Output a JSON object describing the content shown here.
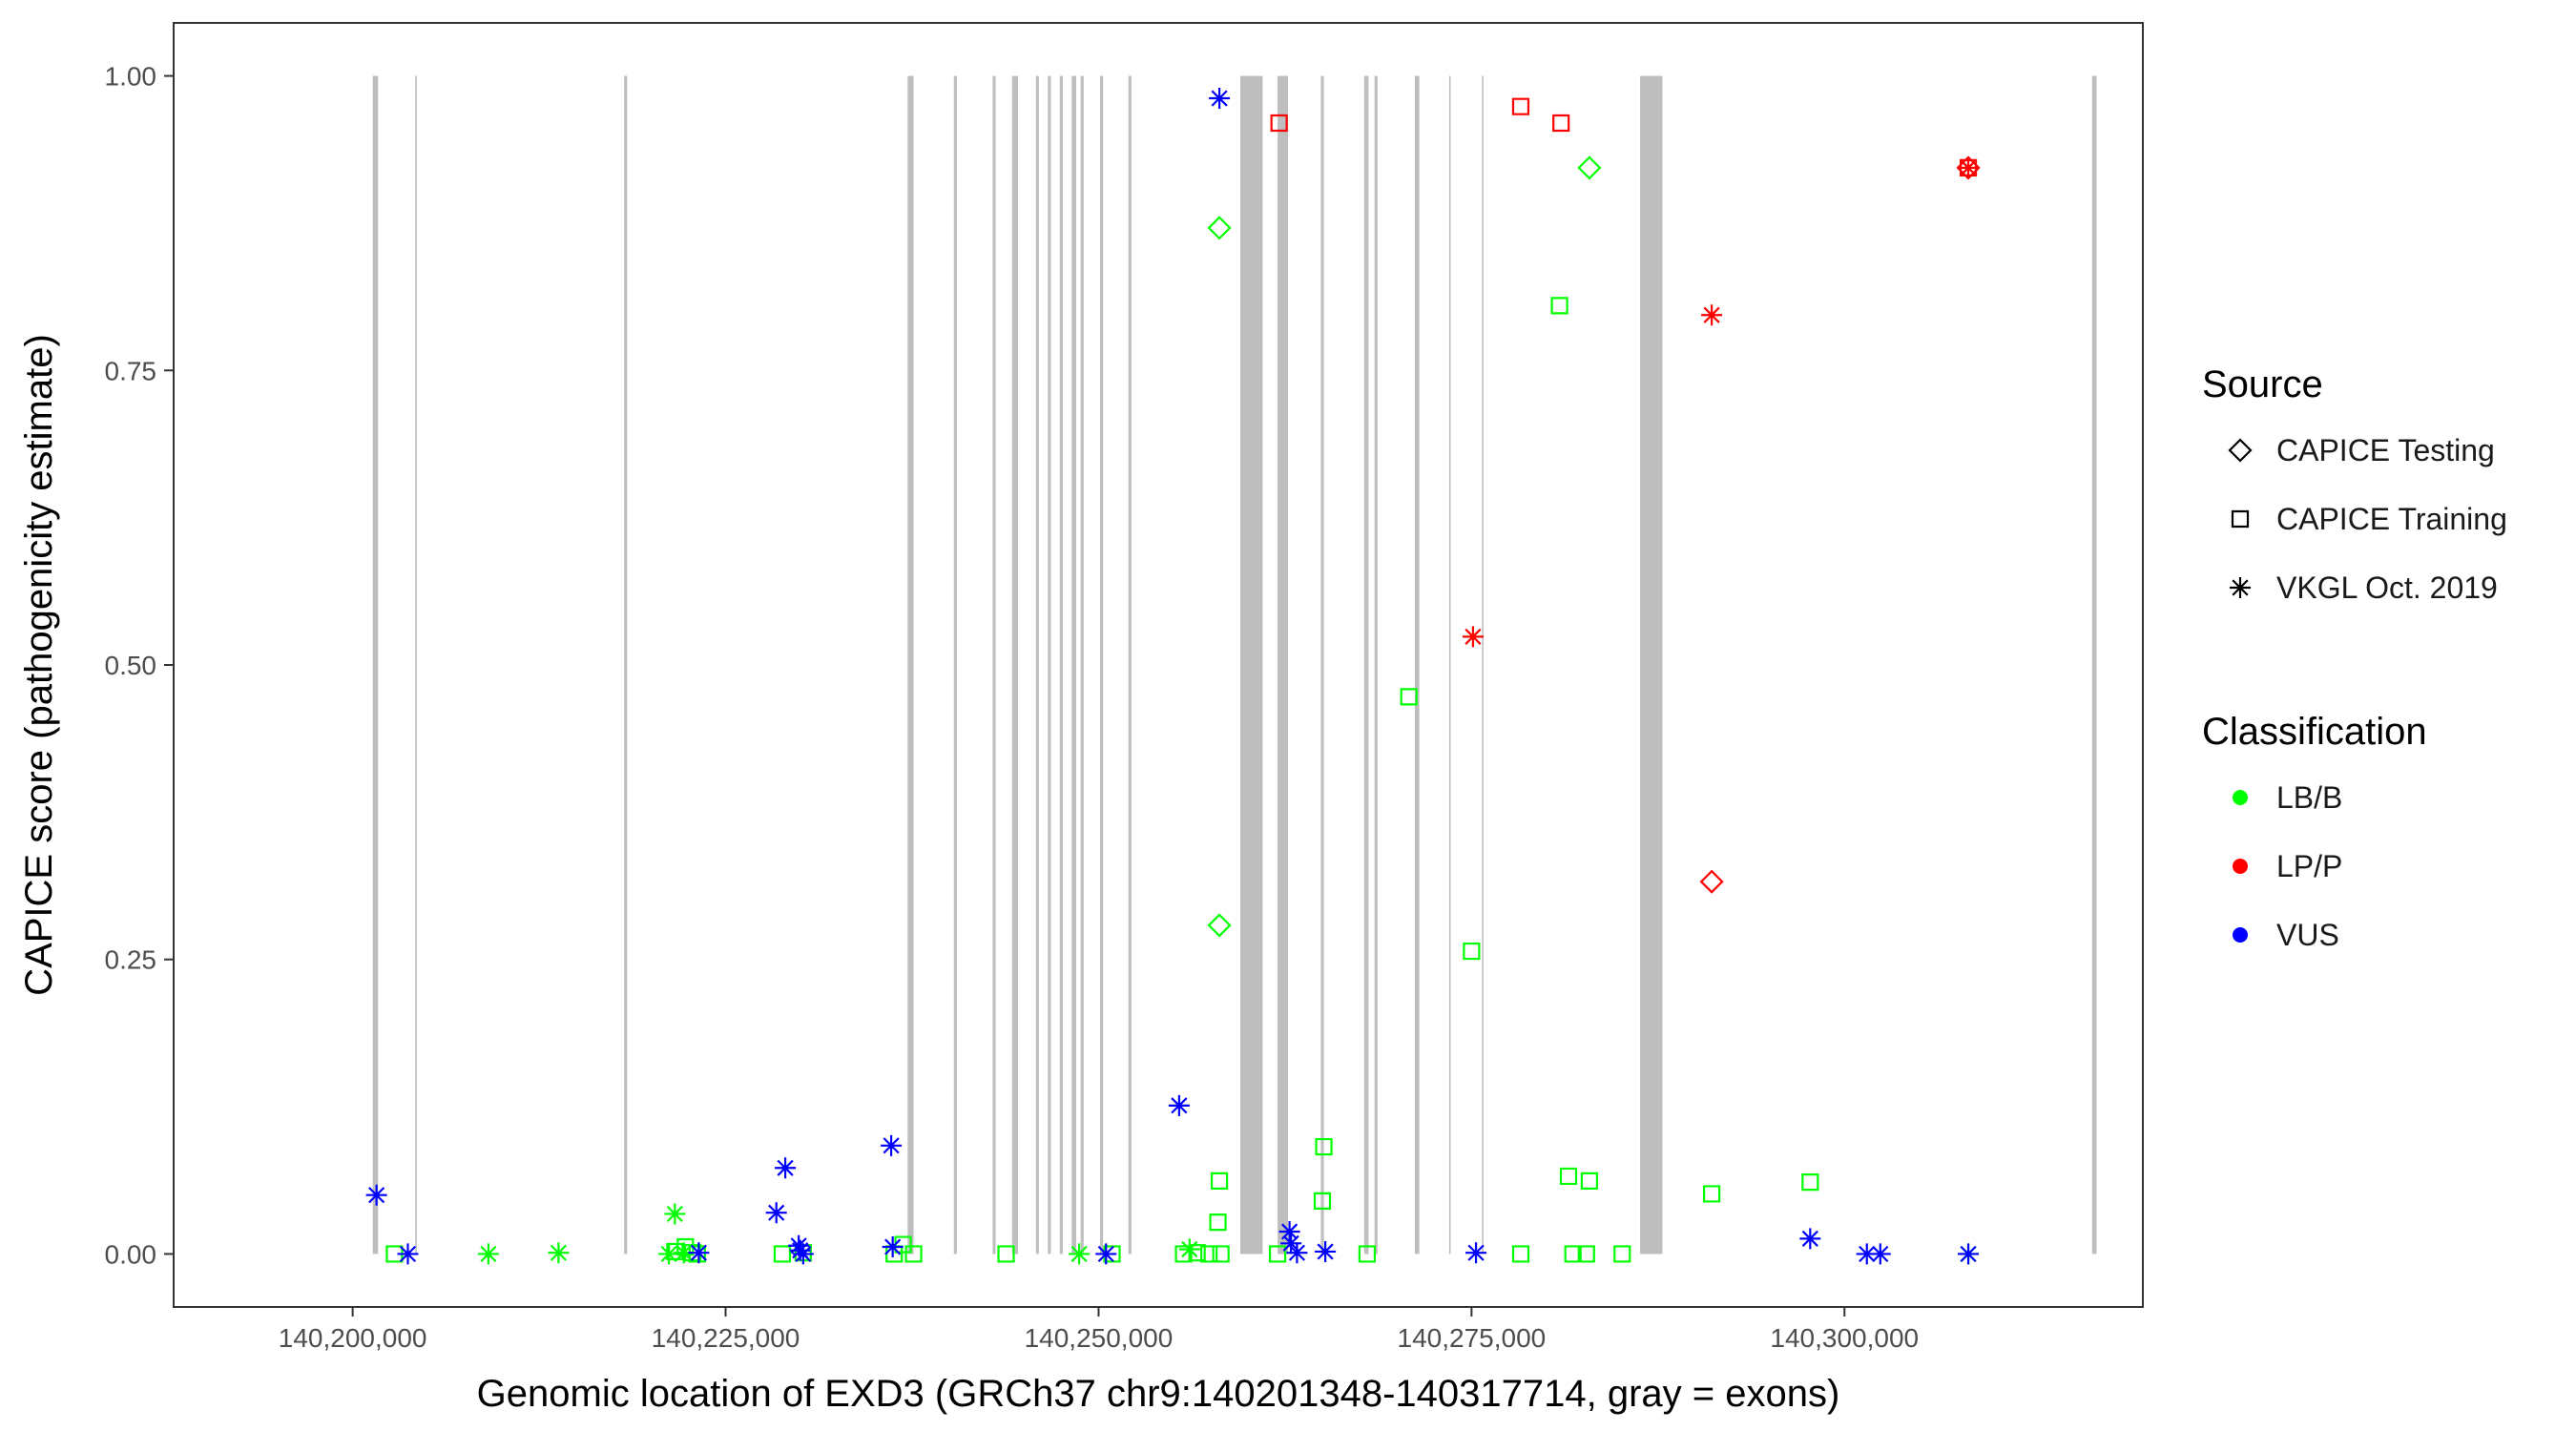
{
  "chart_data": {
    "type": "scatter",
    "xlabel": "Genomic location of EXD3 (GRCh37 chr9:140201348-140317714, gray = exons)",
    "ylabel": "CAPICE score (pathogenicity estimate)",
    "xlim": [
      140188000,
      140320000
    ],
    "ylim": [
      -0.045,
      1.045
    ],
    "x_ticks": [
      140200000,
      140225000,
      140250000,
      140275000,
      140300000
    ],
    "x_tick_labels": [
      "140,200,000",
      "140,225,000",
      "140,250,000",
      "140,275,000",
      "140,300,000"
    ],
    "y_ticks": [
      0,
      0.25,
      0.5,
      0.75,
      1
    ],
    "y_tick_labels": [
      "0.00",
      "0.25",
      "0.50",
      "0.75",
      "1.00"
    ],
    "grid": false,
    "legend_position": "right",
    "exon_color": "#bebebe",
    "exons": [
      [
        140201348,
        140201700
      ],
      [
        140204200,
        140204300
      ],
      [
        140218200,
        140218400
      ],
      [
        140237200,
        140237600
      ],
      [
        140240300,
        140240500
      ],
      [
        140242900,
        140243100
      ],
      [
        140244200,
        140244600
      ],
      [
        140245800,
        140246000
      ],
      [
        140246600,
        140246800
      ],
      [
        140247400,
        140247600
      ],
      [
        140248200,
        140248500
      ],
      [
        140248800,
        140249000
      ],
      [
        140250100,
        140250300
      ],
      [
        140252000,
        140252200
      ],
      [
        140259500,
        140261000
      ],
      [
        140262000,
        140262700
      ],
      [
        140264900,
        140265100
      ],
      [
        140267800,
        140268100
      ],
      [
        140268500,
        140268700
      ],
      [
        140271200,
        140271500
      ],
      [
        140273500,
        140273600
      ],
      [
        140275700,
        140275800
      ],
      [
        140286300,
        140287800
      ],
      [
        140316600,
        140316900
      ]
    ],
    "legend_source": {
      "title": "Source",
      "items": [
        {
          "label": "CAPICE Testing",
          "shape": "diamond"
        },
        {
          "label": "CAPICE Training",
          "shape": "square"
        },
        {
          "label": "VKGL Oct. 2019",
          "shape": "star"
        }
      ]
    },
    "legend_classification": {
      "title": "Classification",
      "items": [
        {
          "label": "LB/B",
          "color": "#00ff00"
        },
        {
          "label": "LP/P",
          "color": "#ff0000"
        },
        {
          "label": "VUS",
          "color": "#0000ff"
        }
      ]
    },
    "series": [
      {
        "source": "CAPICE Testing",
        "classification": "LB/B",
        "shape": "diamond",
        "color": "#00ff00",
        "x": [
          140258100,
          140258100,
          140282900
        ],
        "y": [
          0.871,
          0.279,
          0.922
        ]
      },
      {
        "source": "CAPICE Testing",
        "classification": "LP/P",
        "shape": "diamond",
        "color": "#ff0000",
        "x": [
          140291100,
          140308300
        ],
        "y": [
          0.316,
          0.922
        ]
      },
      {
        "source": "CAPICE Training",
        "classification": "LB/B",
        "shape": "square",
        "color": "#00ff00",
        "x": [
          140202800,
          140221600,
          140222300,
          140222800,
          140223100,
          140228800,
          140230200,
          140236300,
          140236900,
          140237600,
          140243800,
          140250900,
          140255700,
          140256600,
          140257400,
          140258000,
          140258100,
          140258200,
          140262000,
          140265000,
          140265100,
          140268000,
          140270800,
          140275000,
          140278300,
          140280900,
          140281500,
          140281800,
          140282700,
          140282900,
          140285100,
          140291100,
          140297700
        ],
        "y": [
          0,
          0.002,
          0.006,
          0.001,
          0,
          0,
          0.001,
          0,
          0.008,
          0,
          0,
          0,
          0,
          0.001,
          0,
          0.027,
          0.062,
          0,
          0,
          0.045,
          0.091,
          0,
          0.473,
          0.257,
          0,
          0.805,
          0.066,
          0,
          0,
          0.062,
          0,
          0.051,
          0.061
        ]
      },
      {
        "source": "CAPICE Training",
        "classification": "LP/P",
        "shape": "square",
        "color": "#ff0000",
        "x": [
          140262100,
          140278300,
          140281000,
          140308300
        ],
        "y": [
          0.96,
          0.974,
          0.96,
          0.922
        ]
      },
      {
        "source": "VKGL Oct. 2019",
        "classification": "LB/B",
        "shape": "star",
        "color": "#00ff00",
        "x": [
          140209100,
          140213800,
          140221200,
          140221600,
          140222200,
          140248700,
          140256100,
          140308300
        ],
        "y": [
          0,
          0.001,
          0,
          0.034,
          0.001,
          0,
          0.004,
          0
        ]
      },
      {
        "source": "VKGL Oct. 2019",
        "classification": "LP/P",
        "shape": "star",
        "color": "#ff0000",
        "x": [
          140275100,
          140291100,
          140308300
        ],
        "y": [
          0.524,
          0.797,
          0.922
        ]
      },
      {
        "source": "VKGL Oct. 2019",
        "classification": "VUS",
        "shape": "star",
        "color": "#0000ff",
        "x": [
          140201600,
          140203700,
          140223200,
          140228400,
          140229000,
          140229900,
          140230000,
          140230200,
          140236100,
          140236200,
          140250500,
          140255400,
          140258100,
          140262800,
          140262900,
          140263300,
          140265200,
          140275300,
          140297700,
          140301500,
          140302400,
          140308300
        ],
        "y": [
          0.05,
          0,
          0.001,
          0.035,
          0.073,
          0.007,
          0.003,
          0,
          0.092,
          0.006,
          0,
          0.126,
          0.981,
          0.019,
          0.009,
          0.001,
          0.002,
          0.001,
          0.013,
          0,
          0,
          0
        ]
      }
    ]
  }
}
